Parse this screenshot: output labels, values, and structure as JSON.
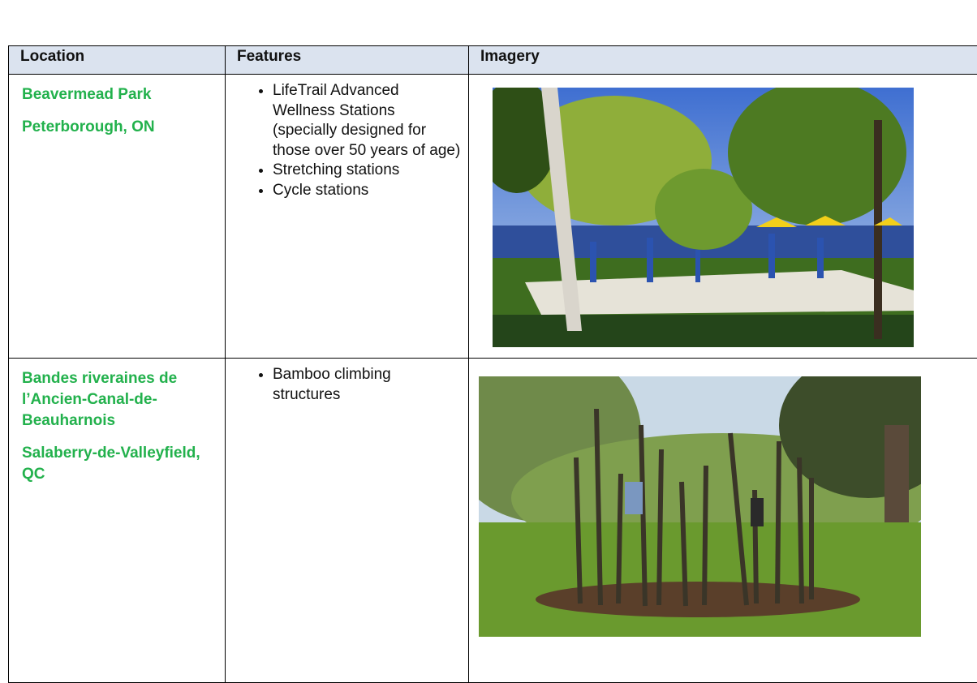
{
  "table": {
    "header": [
      "Location",
      "Features",
      "Imagery"
    ],
    "rows": [
      {
        "location": [
          "Beavermead Park",
          "Peterborough, ON"
        ],
        "features": [
          "LifeTrail Advanced Wellness Stations (specially designed for those over 50 years of age)",
          "Stretching stations",
          "Cycle stations"
        ]
      },
      {
        "location": [
          "Bandes riveraines de l’Ancien-Canal-de-Beauharnois",
          "Salaberry-de-Valleyfield, QC"
        ],
        "features": [
          "Bamboo climbing structures"
        ]
      }
    ]
  }
}
